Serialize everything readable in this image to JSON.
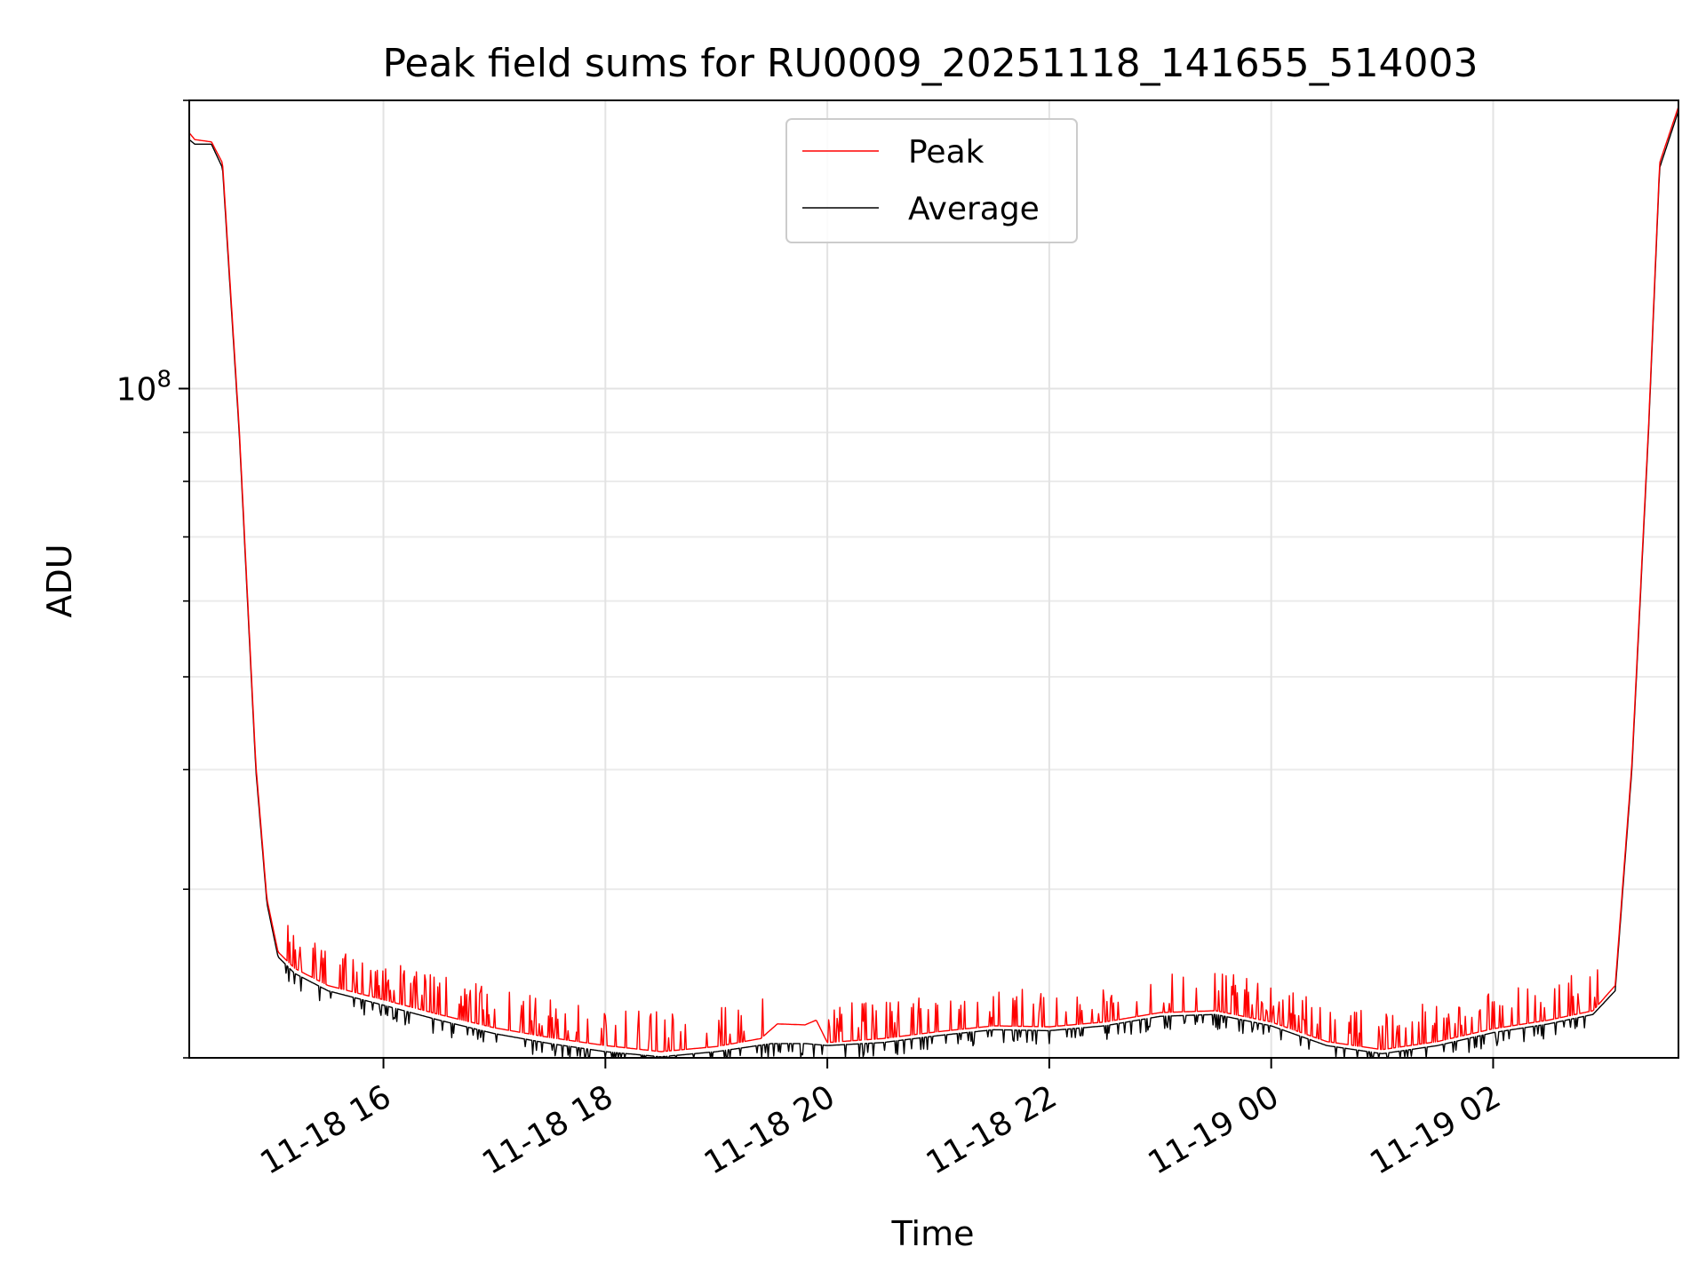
{
  "chart_data": {
    "type": "line",
    "title": "Peak field sums for RU0009_20251118_141655_514003",
    "xlabel": "Time",
    "ylabel": "ADU",
    "yscale": "log",
    "ylim": [
      20000000,
      200000000
    ],
    "xlim": [
      14.25,
      27.67
    ],
    "x_unit": "hours since 2025-11-18 00:00",
    "grid": true,
    "legend_position": "upper-center",
    "x_ticks": [
      {
        "value": 16,
        "label": "11-18 16"
      },
      {
        "value": 18,
        "label": "11-18 18"
      },
      {
        "value": 20,
        "label": "11-18 20"
      },
      {
        "value": 22,
        "label": "11-18 22"
      },
      {
        "value": 24,
        "label": "11-19 00"
      },
      {
        "value": 26,
        "label": "11-19 02"
      }
    ],
    "y_major_ticks": [
      {
        "value": 100000000,
        "base": "10",
        "exp": "8"
      }
    ],
    "y_minor_ticks": [
      20000000,
      30000000,
      40000000,
      50000000,
      60000000,
      70000000,
      80000000,
      90000000,
      200000000
    ],
    "series": [
      {
        "name": "Average",
        "color": "#000000",
        "x": [
          14.25,
          14.3,
          14.45,
          14.55,
          14.7,
          14.85,
          14.95,
          15.05,
          15.2,
          15.5,
          16.0,
          16.5,
          17.0,
          17.5,
          18.0,
          18.5,
          19.0,
          19.5,
          19.8,
          20.0,
          20.5,
          21.0,
          21.5,
          22.0,
          22.5,
          23.0,
          23.5,
          24.0,
          24.5,
          25.0,
          25.5,
          26.0,
          26.5,
          26.9,
          27.1,
          27.25,
          27.4,
          27.5,
          27.67
        ],
        "y": [
          182000000,
          180000000,
          180000000,
          170000000,
          90000000,
          40000000,
          29000000,
          25500000,
          24500000,
          23500000,
          22700000,
          21900000,
          21200000,
          20700000,
          20300000,
          20050000,
          20300000,
          20700000,
          20700000,
          20600000,
          20750000,
          21100000,
          21400000,
          21350000,
          21600000,
          22100000,
          22200000,
          21600000,
          20600000,
          20200000,
          20600000,
          21250000,
          21700000,
          22200000,
          23500000,
          40000000,
          90000000,
          170000000,
          195000000
        ]
      },
      {
        "name": "Peak",
        "color": "#ff0000",
        "x": [
          14.25,
          14.3,
          14.45,
          14.55,
          14.7,
          14.85,
          14.95,
          15.05,
          15.2,
          15.5,
          16.0,
          16.5,
          17.0,
          17.5,
          18.0,
          18.5,
          19.0,
          19.4,
          19.55,
          19.8,
          19.9,
          20.0,
          20.5,
          21.0,
          21.5,
          22.0,
          22.5,
          23.0,
          23.5,
          24.0,
          24.5,
          25.0,
          25.5,
          26.0,
          26.5,
          26.9,
          27.1,
          27.25,
          27.4,
          27.5,
          27.67
        ],
        "y": [
          185000000,
          182000000,
          181000000,
          172000000,
          91000000,
          40500000,
          29300000,
          25800000,
          24800000,
          23800000,
          23000000,
          22200000,
          21500000,
          21000000,
          20600000,
          20300000,
          20550000,
          20950000,
          21700000,
          21650000,
          21900000,
          20750000,
          20950000,
          21300000,
          21600000,
          21550000,
          21800000,
          22300000,
          22400000,
          21800000,
          20800000,
          20400000,
          20800000,
          21450000,
          21900000,
          22400000,
          23800000,
          40500000,
          91000000,
          172000000,
          197000000
        ]
      }
    ]
  }
}
